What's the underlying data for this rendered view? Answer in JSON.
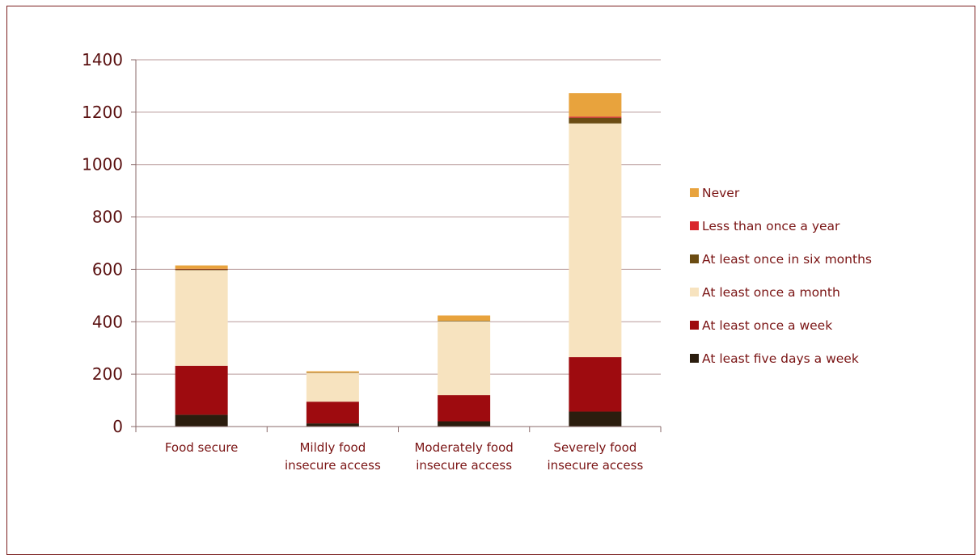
{
  "chart_data": {
    "type": "bar",
    "stacked": true,
    "categories": [
      [
        "Food secure"
      ],
      [
        "Mildly food",
        "insecure access"
      ],
      [
        "Moderately food",
        "insecure access"
      ],
      [
        "Severely food",
        "insecure access"
      ]
    ],
    "series": [
      {
        "name": "At least five days a week",
        "color": "#2b1d0e",
        "values": [
          45,
          12,
          20,
          57
        ]
      },
      {
        "name": "At least once a week",
        "color": "#9e0b0f",
        "values": [
          187,
          83,
          100,
          208
        ]
      },
      {
        "name": "At least once a month",
        "color": "#f7e3bf",
        "values": [
          365,
          110,
          282,
          892
        ]
      },
      {
        "name": "At least once in six months",
        "color": "#6b4c12",
        "values": [
          4,
          1,
          2,
          22
        ]
      },
      {
        "name": "Less than once a year",
        "color": "#d9262c",
        "values": [
          1,
          0,
          0,
          4
        ]
      },
      {
        "name": "Never",
        "color": "#e8a33d",
        "values": [
          13,
          5,
          20,
          90
        ]
      }
    ],
    "legend_order": [
      "Never",
      "Less than once a year",
      "At least once in six months",
      "At least once a month",
      "At least once a week",
      "At least five days a week"
    ],
    "ylim": [
      0,
      1400
    ],
    "yticks": [
      0,
      200,
      400,
      600,
      800,
      1000,
      1200,
      1400
    ],
    "grid": true,
    "legend": "right"
  }
}
